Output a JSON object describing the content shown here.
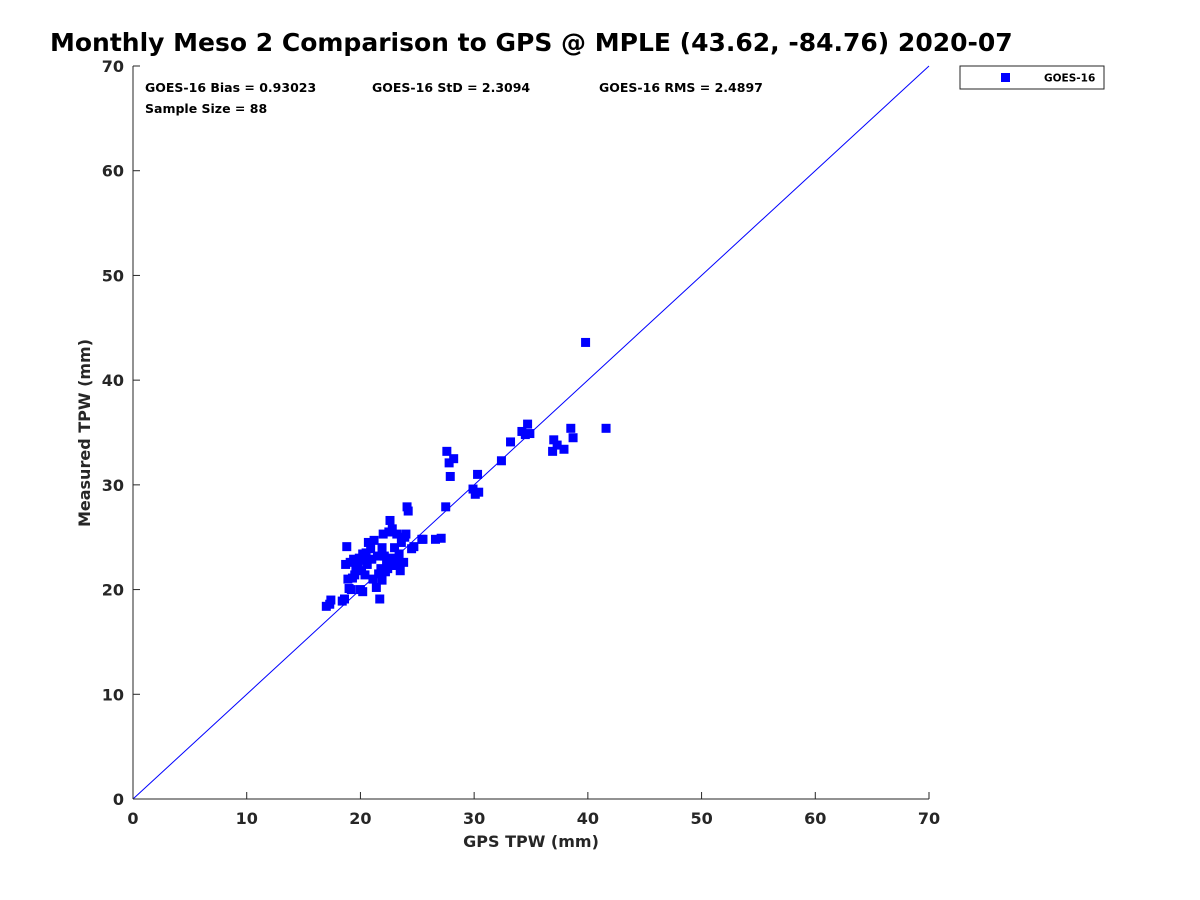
{
  "chart_data": {
    "type": "scatter",
    "title": "Monthly Meso 2 Comparison to GPS @ MPLE (43.62, -84.76) 2020-07",
    "xlabel": "GPS TPW (mm)",
    "ylabel": "Measured TPW (mm)",
    "xlim": [
      0,
      70
    ],
    "ylim": [
      0,
      70
    ],
    "xticks": [
      "0",
      "10",
      "20",
      "30",
      "40",
      "50",
      "60",
      "70"
    ],
    "yticks": [
      "0",
      "10",
      "20",
      "30",
      "40",
      "50",
      "60",
      "70"
    ],
    "grid": false,
    "legend_position": "top-right",
    "reference_line": [
      [
        0,
        0
      ],
      [
        70,
        70
      ]
    ],
    "annotations": {
      "bias": "GOES-16 Bias = 0.93023",
      "std": "GOES-16 StD = 2.3094",
      "rms": "GOES-16 RMS = 2.4897",
      "sample_size": "Sample Size = 88"
    },
    "series": [
      {
        "name": "GOES-16",
        "color": "#0000ff",
        "marker": "square",
        "points": [
          [
            17.0,
            18.4
          ],
          [
            17.3,
            18.6
          ],
          [
            17.4,
            19.0
          ],
          [
            18.4,
            18.9
          ],
          [
            18.6,
            19.1
          ],
          [
            18.7,
            22.4
          ],
          [
            18.8,
            24.1
          ],
          [
            18.9,
            21.0
          ],
          [
            19.1,
            22.6
          ],
          [
            19.2,
            20.0
          ],
          [
            19.3,
            21.1
          ],
          [
            19.4,
            22.9
          ],
          [
            19.5,
            21.4
          ],
          [
            19.6,
            22.0
          ],
          [
            19.8,
            22.5
          ],
          [
            19.9,
            23.0
          ],
          [
            20.0,
            20.0
          ],
          [
            20.1,
            21.8
          ],
          [
            20.2,
            19.8
          ],
          [
            20.3,
            22.8
          ],
          [
            20.4,
            21.4
          ],
          [
            20.5,
            23.5
          ],
          [
            20.6,
            22.4
          ],
          [
            20.7,
            24.5
          ],
          [
            20.9,
            23.9
          ],
          [
            21.0,
            22.9
          ],
          [
            21.2,
            24.7
          ],
          [
            21.4,
            20.2
          ],
          [
            21.5,
            23.2
          ],
          [
            21.6,
            21.5
          ],
          [
            21.7,
            19.1
          ],
          [
            21.8,
            22.0
          ],
          [
            21.9,
            24.0
          ],
          [
            21.9,
            20.9
          ],
          [
            22.0,
            25.3
          ],
          [
            22.1,
            23.2
          ],
          [
            22.2,
            21.7
          ],
          [
            22.3,
            22.5
          ],
          [
            22.5,
            25.5
          ],
          [
            22.6,
            26.6
          ],
          [
            22.7,
            23.0
          ],
          [
            22.8,
            25.8
          ],
          [
            22.9,
            22.3
          ],
          [
            23.0,
            24.0
          ],
          [
            23.1,
            22.8
          ],
          [
            23.2,
            25.3
          ],
          [
            23.3,
            22.4
          ],
          [
            23.5,
            21.8
          ],
          [
            23.6,
            24.5
          ],
          [
            23.8,
            22.6
          ],
          [
            23.9,
            25.0
          ],
          [
            24.0,
            25.3
          ],
          [
            24.1,
            27.9
          ],
          [
            24.2,
            27.5
          ],
          [
            24.5,
            23.9
          ],
          [
            24.7,
            24.1
          ],
          [
            25.4,
            24.8
          ],
          [
            25.5,
            24.8
          ],
          [
            26.6,
            24.8
          ],
          [
            27.1,
            24.9
          ],
          [
            27.5,
            27.9
          ],
          [
            27.6,
            33.2
          ],
          [
            27.8,
            32.1
          ],
          [
            27.9,
            30.8
          ],
          [
            28.2,
            32.5
          ],
          [
            29.9,
            29.6
          ],
          [
            30.1,
            29.1
          ],
          [
            30.3,
            31.0
          ],
          [
            30.4,
            29.3
          ],
          [
            32.4,
            32.3
          ],
          [
            33.2,
            34.1
          ],
          [
            34.2,
            35.1
          ],
          [
            34.5,
            34.8
          ],
          [
            34.7,
            35.8
          ],
          [
            34.9,
            34.9
          ],
          [
            36.9,
            33.2
          ],
          [
            37.0,
            34.3
          ],
          [
            37.3,
            33.8
          ],
          [
            37.9,
            33.4
          ],
          [
            38.5,
            35.4
          ],
          [
            38.7,
            34.5
          ],
          [
            39.8,
            43.6
          ],
          [
            41.6,
            35.4
          ],
          [
            22.4,
            22.0
          ],
          [
            20.2,
            23.4
          ],
          [
            19.0,
            20.1
          ],
          [
            21.1,
            21.0
          ],
          [
            23.4,
            23.4
          ]
        ]
      }
    ]
  }
}
